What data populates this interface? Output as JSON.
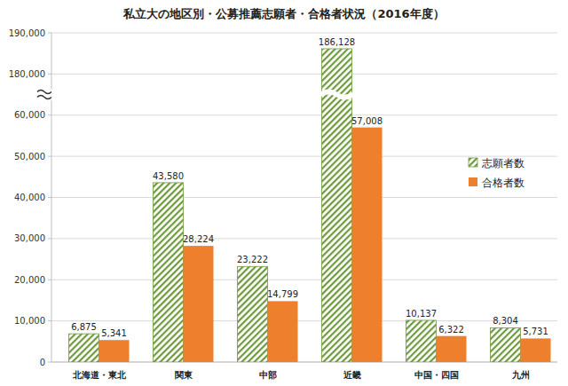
{
  "chart_data": {
    "type": "bar",
    "title": "私立大の地区別・公募推薦志願者・合格者状況（2016年度）",
    "categories": [
      "北海道・東北",
      "関東",
      "中部",
      "近畿",
      "中国・四国",
      "九州"
    ],
    "series": [
      {
        "name": "志願者数",
        "color": "#6e9a3c",
        "values": [
          6875,
          43580,
          23222,
          186128,
          10137,
          8304
        ],
        "value_labels": [
          "6,875",
          "43,580",
          "23,222",
          "186,128",
          "10,137",
          "8,304"
        ]
      },
      {
        "name": "合格者数",
        "color": "#ee7f2d",
        "values": [
          5341,
          28224,
          14799,
          57008,
          6322,
          5731
        ],
        "value_labels": [
          "5,341",
          "28,224",
          "14,799",
          "57,008",
          "6,322",
          "5,731"
        ]
      }
    ],
    "ylim": [
      0,
      190000
    ],
    "yticks": [
      0,
      {
        "value": 10000,
        "label": "10,000"
      },
      {
        "value": 20000,
        "label": "20,000"
      },
      {
        "value": 30000,
        "label": "30,000"
      },
      {
        "value": 40000,
        "label": "40,000"
      },
      {
        "value": 50000,
        "label": "50,000"
      },
      {
        "value": 60000,
        "label": "60,000"
      },
      {
        "value": 180000,
        "label": "180,000"
      },
      {
        "value": 190000,
        "label": "190,000"
      }
    ],
    "ybreak": [
      65000,
      175000
    ],
    "grid": true,
    "legend": "right",
    "data_labels": true
  }
}
